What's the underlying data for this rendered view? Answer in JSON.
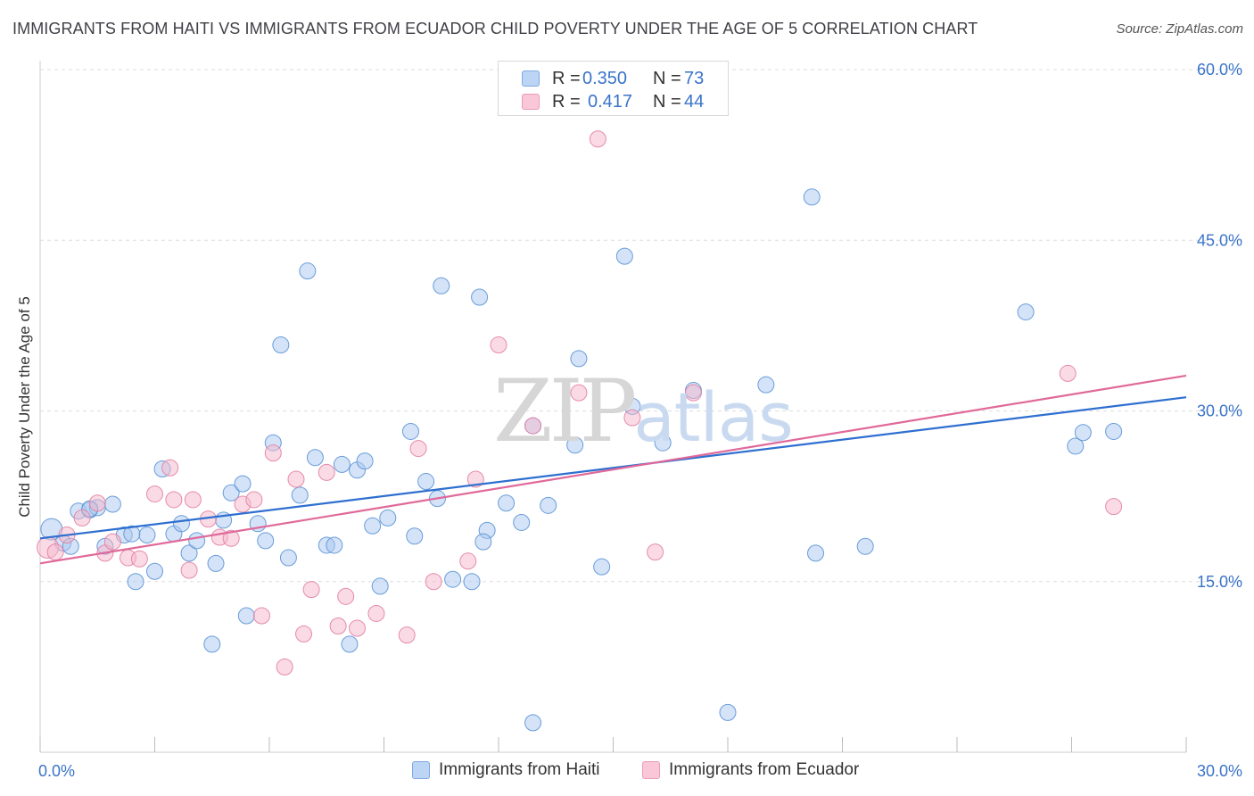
{
  "title": "IMMIGRANTS FROM HAITI VS IMMIGRANTS FROM ECUADOR CHILD POVERTY UNDER THE AGE OF 5 CORRELATION CHART",
  "source": "Source: ZipAtlas.com",
  "watermark": {
    "zip": "ZIP",
    "atlas": "atlas"
  },
  "legend_top": [
    {
      "r_label": "R =",
      "r_value": "0.350",
      "n_label": "N =",
      "n_value": "73"
    },
    {
      "r_label": "R =",
      "r_value": "0.417",
      "n_label": "N =",
      "n_value": "44"
    }
  ],
  "colors": {
    "haiti_fill": "#a9c8f0",
    "haiti_stroke": "#5b93d6",
    "haiti_line": "#2e6fd0",
    "ecuador_fill": "#f6b8cc",
    "ecuador_stroke": "#e37fa2",
    "ecuador_line": "#e0699a",
    "grid": "#dddddd",
    "axis_text": "#3a73c9"
  },
  "chart_data": {
    "type": "scatter",
    "title": "IMMIGRANTS FROM HAITI VS IMMIGRANTS FROM ECUADOR CHILD POVERTY UNDER THE AGE OF 5 CORRELATION CHART",
    "xlabel": "",
    "ylabel": "Child Poverty Under the Age of 5",
    "xlim": [
      0,
      30
    ],
    "ylim": [
      0,
      60
    ],
    "x_tick_labels": [
      "0.0%",
      "30.0%"
    ],
    "y_ticks": [
      15,
      30,
      45,
      60
    ],
    "y_tick_labels": [
      "15.0%",
      "30.0%",
      "45.0%",
      "60.0%"
    ],
    "grid": true,
    "legend_placement": "bottom-center",
    "series": [
      {
        "name": "Immigrants from Haiti",
        "R": 0.35,
        "N": 73,
        "trend": [
          [
            0,
            18.8
          ],
          [
            30,
            31.2
          ]
        ],
        "points": [
          [
            0.3,
            19.6
          ],
          [
            0.6,
            18.4
          ],
          [
            0.8,
            18.1
          ],
          [
            1.0,
            21.2
          ],
          [
            1.3,
            21.3
          ],
          [
            1.5,
            21.5
          ],
          [
            1.9,
            21.8
          ],
          [
            1.7,
            18.1
          ],
          [
            2.2,
            19.1
          ],
          [
            2.5,
            15.0
          ],
          [
            2.8,
            19.1
          ],
          [
            3.0,
            15.9
          ],
          [
            3.2,
            24.9
          ],
          [
            3.5,
            19.2
          ],
          [
            3.7,
            20.1
          ],
          [
            3.9,
            17.5
          ],
          [
            4.1,
            18.6
          ],
          [
            4.5,
            9.5
          ],
          [
            4.6,
            16.6
          ],
          [
            4.8,
            20.4
          ],
          [
            5.0,
            22.8
          ],
          [
            5.3,
            23.6
          ],
          [
            5.4,
            12.0
          ],
          [
            5.7,
            20.1
          ],
          [
            5.9,
            18.6
          ],
          [
            6.1,
            27.2
          ],
          [
            6.3,
            35.8
          ],
          [
            6.5,
            17.1
          ],
          [
            6.8,
            22.6
          ],
          [
            7.0,
            42.3
          ],
          [
            7.2,
            25.9
          ],
          [
            7.5,
            18.2
          ],
          [
            7.7,
            18.2
          ],
          [
            7.9,
            25.3
          ],
          [
            8.1,
            9.5
          ],
          [
            8.3,
            24.8
          ],
          [
            8.5,
            25.6
          ],
          [
            8.7,
            19.9
          ],
          [
            8.9,
            14.6
          ],
          [
            9.1,
            20.6
          ],
          [
            9.7,
            28.2
          ],
          [
            9.8,
            19.0
          ],
          [
            10.1,
            23.8
          ],
          [
            10.4,
            22.3
          ],
          [
            10.5,
            41.0
          ],
          [
            10.8,
            15.2
          ],
          [
            11.3,
            15.0
          ],
          [
            11.5,
            40.0
          ],
          [
            11.7,
            19.5
          ],
          [
            11.6,
            18.5
          ],
          [
            12.2,
            21.9
          ],
          [
            12.6,
            20.2
          ],
          [
            12.9,
            28.7
          ],
          [
            13.3,
            21.7
          ],
          [
            14.1,
            34.6
          ],
          [
            14.0,
            27.0
          ],
          [
            14.7,
            16.3
          ],
          [
            15.3,
            43.6
          ],
          [
            15.5,
            30.4
          ],
          [
            16.3,
            27.2
          ],
          [
            17.1,
            31.8
          ],
          [
            18.0,
            3.5
          ],
          [
            19.0,
            32.3
          ],
          [
            20.2,
            48.8
          ],
          [
            20.3,
            17.5
          ],
          [
            21.6,
            18.1
          ],
          [
            12.9,
            2.6
          ],
          [
            25.8,
            38.7
          ],
          [
            27.1,
            26.9
          ],
          [
            27.3,
            28.1
          ],
          [
            28.1,
            28.2
          ],
          [
            2.4,
            19.2
          ],
          [
            1.3,
            21.4
          ]
        ]
      },
      {
        "name": "Immigrants from Ecuador",
        "R": 0.417,
        "N": 44,
        "trend": [
          [
            0,
            16.6
          ],
          [
            30,
            33.1
          ]
        ],
        "points": [
          [
            0.2,
            18.0
          ],
          [
            0.4,
            17.6
          ],
          [
            0.7,
            19.1
          ],
          [
            1.1,
            20.6
          ],
          [
            1.5,
            21.9
          ],
          [
            1.7,
            17.5
          ],
          [
            1.9,
            18.5
          ],
          [
            2.3,
            17.1
          ],
          [
            2.6,
            17.0
          ],
          [
            3.0,
            22.7
          ],
          [
            3.4,
            25.0
          ],
          [
            3.5,
            22.2
          ],
          [
            3.9,
            16.0
          ],
          [
            4.0,
            22.2
          ],
          [
            4.4,
            20.5
          ],
          [
            4.7,
            18.9
          ],
          [
            5.0,
            18.8
          ],
          [
            5.3,
            21.8
          ],
          [
            5.6,
            22.2
          ],
          [
            5.8,
            12.0
          ],
          [
            6.1,
            26.3
          ],
          [
            6.4,
            7.5
          ],
          [
            6.7,
            24.0
          ],
          [
            6.9,
            10.4
          ],
          [
            7.1,
            14.3
          ],
          [
            7.5,
            24.6
          ],
          [
            7.8,
            11.1
          ],
          [
            8.0,
            13.7
          ],
          [
            8.3,
            10.9
          ],
          [
            8.8,
            12.2
          ],
          [
            9.6,
            10.3
          ],
          [
            9.9,
            26.7
          ],
          [
            10.3,
            15.0
          ],
          [
            11.2,
            16.8
          ],
          [
            11.4,
            24.0
          ],
          [
            12.0,
            35.8
          ],
          [
            12.9,
            28.7
          ],
          [
            14.1,
            31.6
          ],
          [
            14.6,
            53.9
          ],
          [
            15.5,
            29.4
          ],
          [
            16.1,
            17.6
          ],
          [
            17.1,
            31.6
          ],
          [
            26.9,
            33.3
          ],
          [
            28.1,
            21.6
          ]
        ]
      }
    ]
  },
  "legend_bottom": [
    {
      "label": "Immigrants from Haiti"
    },
    {
      "label": "Immigrants from Ecuador"
    }
  ]
}
